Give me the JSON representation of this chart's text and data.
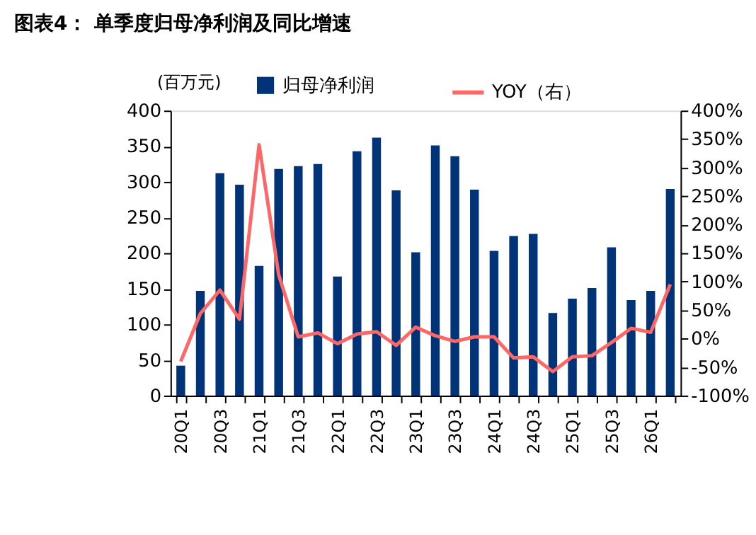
{
  "chart_data": {
    "type": "bar",
    "title": "图表4：  单季度归母净利润及同比增速",
    "ylabel": "(百万元)",
    "categories": [
      "20Q1",
      null,
      "20Q3",
      null,
      "21Q1",
      null,
      "21Q3",
      null,
      "22Q1",
      null,
      "22Q3",
      null,
      "23Q1",
      null,
      "23Q3",
      null,
      "24Q1",
      null,
      "24Q3",
      null,
      "25Q1",
      null,
      "25Q3",
      null,
      "26Q1",
      null
    ],
    "series": [
      {
        "name": "归母净利润",
        "color": "#003378",
        "values": [
          42,
          147,
          312,
          296,
          182,
          318,
          322,
          325,
          167,
          343,
          362,
          288,
          201,
          351,
          336,
          289,
          203,
          224,
          227,
          116,
          136,
          151,
          208,
          134,
          147,
          290
        ]
      },
      {
        "name": "YOY（右）",
        "type": "line",
        "axis": "y2",
        "color": "#ff6666",
        "values": [
          -40,
          44,
          85,
          34,
          340,
          112,
          3,
          10,
          -9,
          8,
          12,
          -12,
          20,
          5,
          -5,
          3,
          3,
          -34,
          -32,
          -58,
          -32,
          -30,
          -7,
          18,
          11,
          95
        ]
      }
    ],
    "ylim": [
      0,
      400
    ],
    "yticks": [
      0,
      50,
      100,
      150,
      200,
      250,
      300,
      350,
      400
    ],
    "y2lim": [
      -100,
      400
    ],
    "y2ticks": [
      {
        "value": -100,
        "label": "-100%"
      },
      {
        "value": -50,
        "label": "-50%"
      },
      {
        "value": 0,
        "label": "0%"
      },
      {
        "value": 50,
        "label": "50%"
      },
      {
        "value": 100,
        "label": "100%"
      },
      {
        "value": 150,
        "label": "150%"
      },
      {
        "value": 200,
        "label": "200%"
      },
      {
        "value": 250,
        "label": "250%"
      },
      {
        "value": 300,
        "label": "300%"
      },
      {
        "value": 350,
        "label": "350%"
      },
      {
        "value": 400,
        "label": "400%"
      }
    ],
    "grid": false,
    "legend": "top"
  }
}
